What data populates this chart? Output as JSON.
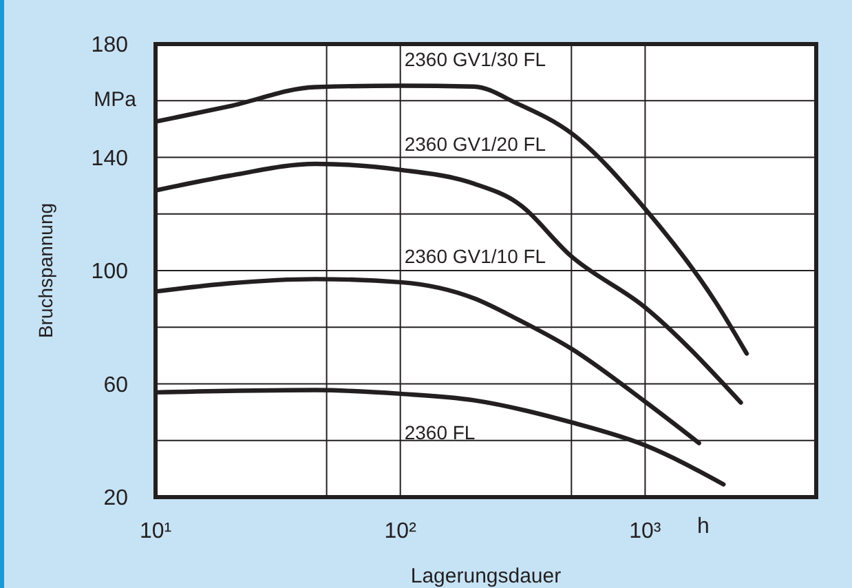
{
  "chart_data": {
    "type": "line",
    "xlabel": "Lagerungsdauer",
    "ylabel": "Bruchspannung",
    "annotations": [
      "MPa",
      "h"
    ],
    "log": "x",
    "xlim": [
      10,
      5000
    ],
    "xticks": [
      {
        "value": 10,
        "label": "10¹"
      },
      {
        "value": 50,
        "label": null
      },
      {
        "value": 100,
        "label": "10²"
      },
      {
        "value": 500,
        "label": null
      },
      {
        "value": 1000,
        "label": "10³"
      }
    ],
    "ylim": [
      20,
      180
    ],
    "yticks": [
      20,
      {
        "value": 40,
        "label": null
      },
      60,
      {
        "value": 80,
        "label": null
      },
      100,
      {
        "value": 120,
        "label": null
      },
      140,
      {
        "value": 160,
        "label": null
      },
      180
    ],
    "grid": true,
    "legend": false,
    "marker": "none",
    "line_style": "solid",
    "series": [
      {
        "name": "2360 GV1/30 FL",
        "color": "#231f20",
        "x": [
          10,
          20,
          45,
          100,
          200,
          300,
          500,
          1000,
          1950,
          2600
        ],
        "values": [
          152.6,
          158,
          164.8,
          165.3,
          165,
          159,
          148.5,
          121.8,
          88.6,
          70.7
        ]
      },
      {
        "name": "2360 GV1/20 FL",
        "color": "#231f20",
        "x": [
          10,
          20,
          45,
          100,
          200,
          300,
          500,
          1000,
          2460
        ],
        "values": [
          128.3,
          133.5,
          137.7,
          135.6,
          130.7,
          124,
          105,
          87,
          53.4
        ]
      },
      {
        "name": "2360 GV1/10 FL",
        "color": "#231f20",
        "x": [
          10,
          20,
          45,
          100,
          200,
          300,
          500,
          1000,
          1660
        ],
        "values": [
          92.6,
          95.5,
          97,
          95.9,
          90.2,
          82.9,
          72.4,
          53.7,
          39.1
        ]
      },
      {
        "name": "2360 FL",
        "color": "#231f20",
        "x": [
          10,
          45,
          100,
          200,
          500,
          1000,
          2090
        ],
        "values": [
          57,
          57.8,
          56.5,
          54.2,
          46.4,
          38.3,
          24.5
        ]
      }
    ]
  }
}
